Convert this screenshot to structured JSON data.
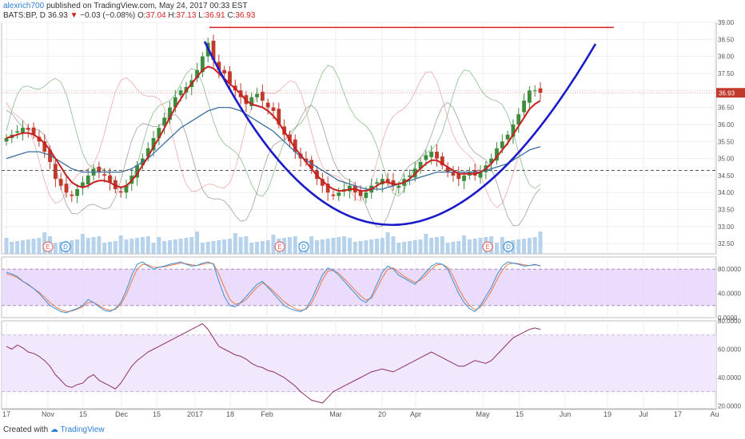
{
  "header": {
    "author": "alexrich700",
    "published": "published on TradingView.com, May 24, 2017 00:33 EST",
    "symbol": "BATS:BP, D",
    "last": "36.93",
    "change_arrow": "▼",
    "change": "−0.03 (−0.08%)",
    "o_label": "O:",
    "o": "37.04",
    "h_label": "H:",
    "h": "37.13",
    "l_label": "L:",
    "l": "36.91",
    "c_label": "C:",
    "c": "36.93"
  },
  "footer": {
    "created_with": "Created with",
    "brand": "TradingView"
  },
  "colors": {
    "up": "#3c8c3c",
    "down": "#c0392b",
    "ma_red": "#c81e1e",
    "ma_blue": "#3a6fa0",
    "cup": "#1a1ac8",
    "stoch_k": "#3a8fd6",
    "stoch_d": "#e8794a",
    "rsi": "#8e2f6e",
    "band": "#e6d3fb"
  },
  "chart_data": [
    {
      "type": "candlestick",
      "title": "",
      "ylim": [
        32.2,
        39.0
      ],
      "y_ticks": [
        "32.50",
        "33.00",
        "33.50",
        "34.00",
        "34.50",
        "35.00",
        "35.50",
        "36.00",
        "36.50",
        "37.00",
        "37.50",
        "38.00",
        "38.50",
        "39.00"
      ],
      "x_tick_labels": [
        "17",
        "Nov",
        "15",
        "Dec",
        "15",
        "2017",
        "18",
        "Feb",
        "Mar",
        "20",
        "Apr",
        "May",
        "15",
        "Jun",
        "19",
        "Jul",
        "17",
        "Au"
      ],
      "last_price_label": "36.93",
      "resistance_level": 38.85,
      "support_level": 34.65,
      "close": [
        35.6,
        35.7,
        35.8,
        35.9,
        35.85,
        35.7,
        35.5,
        35.2,
        34.9,
        34.4,
        34.2,
        34.0,
        33.9,
        34.1,
        34.3,
        34.5,
        34.7,
        34.6,
        34.5,
        34.3,
        34.1,
        34.0,
        34.2,
        34.5,
        34.8,
        35.0,
        35.3,
        35.6,
        35.9,
        36.2,
        36.5,
        36.8,
        37.0,
        37.1,
        37.3,
        37.6,
        38.0,
        38.4,
        37.9,
        37.6,
        37.5,
        37.2,
        37.0,
        36.8,
        36.6,
        36.8,
        36.9,
        36.7,
        36.5,
        36.4,
        36.0,
        35.7,
        35.5,
        35.2,
        35.0,
        34.9,
        34.7,
        34.4,
        34.2,
        34.0,
        33.9,
        34.0,
        34.1,
        34.2,
        34.0,
        33.9,
        34.0,
        34.2,
        34.3,
        34.4,
        34.3,
        34.2,
        34.2,
        34.4,
        34.5,
        34.7,
        34.9,
        35.1,
        35.2,
        35.0,
        34.8,
        34.6,
        34.5,
        34.4,
        34.5,
        34.6,
        34.5,
        34.6,
        34.8,
        35.0,
        35.3,
        35.5,
        35.7,
        36.0,
        36.3,
        36.7,
        37.0,
        37.0,
        36.93
      ],
      "ma_red_values": [
        35.6,
        35.65,
        35.7,
        35.75,
        35.75,
        35.7,
        35.6,
        35.45,
        35.25,
        35.0,
        34.75,
        34.5,
        34.3,
        34.2,
        34.15,
        34.2,
        34.3,
        34.35,
        34.35,
        34.3,
        34.2,
        34.15,
        34.2,
        34.35,
        34.55,
        34.8,
        35.05,
        35.35,
        35.6,
        35.9,
        36.2,
        36.5,
        36.75,
        37.0,
        37.2,
        37.4,
        37.6,
        37.7,
        37.65,
        37.5,
        37.35,
        37.2,
        37.05,
        36.9,
        36.7,
        36.6,
        36.55,
        36.5,
        36.4,
        36.25,
        36.05,
        35.8,
        35.55,
        35.3,
        35.1,
        34.9,
        34.7,
        34.5,
        34.35,
        34.2,
        34.1,
        34.05,
        34.05,
        34.1,
        34.1,
        34.05,
        34.05,
        34.1,
        34.2,
        34.3,
        34.3,
        34.25,
        34.25,
        34.3,
        34.4,
        34.55,
        34.7,
        34.85,
        34.95,
        34.95,
        34.85,
        34.75,
        34.65,
        34.55,
        34.55,
        34.55,
        34.55,
        34.6,
        34.7,
        34.85,
        35.05,
        35.25,
        35.45,
        35.7,
        35.95,
        36.2,
        36.45,
        36.6,
        36.7
      ],
      "ma_blue_values": [
        35.0,
        35.05,
        35.1,
        35.15,
        35.2,
        35.2,
        35.2,
        35.15,
        35.1,
        35.0,
        34.9,
        34.8,
        34.7,
        34.65,
        34.6,
        34.6,
        34.6,
        34.6,
        34.6,
        34.6,
        34.6,
        34.6,
        34.65,
        34.7,
        34.8,
        34.9,
        35.0,
        35.15,
        35.3,
        35.45,
        35.6,
        35.75,
        35.9,
        36.0,
        36.1,
        36.2,
        36.3,
        36.4,
        36.45,
        36.5,
        36.5,
        36.5,
        36.45,
        36.4,
        36.3,
        36.2,
        36.1,
        36.0,
        35.9,
        35.8,
        35.65,
        35.5,
        35.35,
        35.2,
        35.05,
        34.95,
        34.85,
        34.75,
        34.65,
        34.55,
        34.45,
        34.35,
        34.3,
        34.25,
        34.2,
        34.15,
        34.1,
        34.1,
        34.1,
        34.1,
        34.15,
        34.2,
        34.25,
        34.3,
        34.35,
        34.4,
        34.45,
        34.5,
        34.55,
        34.6,
        34.6,
        34.6,
        34.6,
        34.6,
        34.6,
        34.6,
        34.6,
        34.6,
        34.65,
        34.7,
        34.75,
        34.8,
        34.85,
        34.95,
        35.05,
        35.15,
        35.25,
        35.3,
        35.35
      ],
      "cup_curve_note": "E",
      "dividend_marker": "D"
    },
    {
      "type": "line",
      "title": "",
      "ylim": [
        0,
        100
      ],
      "y_ticks": [
        "0.0000",
        "40.0000",
        "80.0000"
      ],
      "upper_band": 80,
      "lower_band": 20,
      "series_k": [
        75,
        72,
        68,
        60,
        55,
        48,
        40,
        30,
        20,
        15,
        10,
        8,
        12,
        15,
        20,
        30,
        25,
        18,
        12,
        10,
        15,
        25,
        45,
        70,
        88,
        92,
        85,
        80,
        83,
        85,
        88,
        90,
        92,
        88,
        85,
        86,
        90,
        92,
        88,
        60,
        35,
        20,
        18,
        25,
        35,
        45,
        55,
        60,
        50,
        40,
        30,
        20,
        15,
        12,
        10,
        15,
        30,
        50,
        70,
        82,
        78,
        70,
        60,
        50,
        40,
        30,
        25,
        35,
        55,
        75,
        85,
        80,
        70,
        65,
        60,
        55,
        65,
        75,
        85,
        90,
        88,
        80,
        60,
        40,
        25,
        15,
        10,
        20,
        35,
        50,
        70,
        85,
        92,
        90,
        88,
        85,
        86,
        88,
        85
      ],
      "series_d": [
        72,
        70,
        66,
        60,
        54,
        48,
        42,
        34,
        25,
        18,
        13,
        10,
        11,
        14,
        18,
        25,
        25,
        20,
        15,
        12,
        14,
        22,
        38,
        60,
        80,
        88,
        87,
        83,
        83,
        84,
        86,
        88,
        90,
        89,
        87,
        86,
        88,
        90,
        89,
        72,
        50,
        30,
        22,
        24,
        30,
        40,
        50,
        57,
        52,
        44,
        35,
        26,
        20,
        15,
        12,
        14,
        24,
        42,
        62,
        77,
        78,
        73,
        64,
        55,
        45,
        36,
        29,
        32,
        48,
        66,
        80,
        82,
        75,
        68,
        63,
        58,
        62,
        70,
        80,
        87,
        88,
        83,
        68,
        48,
        32,
        20,
        13,
        17,
        29,
        44,
        62,
        78,
        88,
        90,
        89,
        87,
        86,
        87,
        86
      ]
    },
    {
      "type": "line",
      "title": "",
      "ylim": [
        18,
        80
      ],
      "y_ticks": [
        "20.0000",
        "40.0000",
        "60.0000",
        "80.0000"
      ],
      "upper_band": 70,
      "lower_band": 30,
      "values": [
        62,
        60,
        63,
        61,
        58,
        57,
        55,
        52,
        48,
        42,
        38,
        34,
        33,
        35,
        36,
        40,
        42,
        38,
        36,
        34,
        32,
        36,
        42,
        48,
        52,
        55,
        58,
        60,
        62,
        64,
        66,
        68,
        70,
        72,
        74,
        76,
        78,
        74,
        68,
        62,
        60,
        58,
        56,
        55,
        53,
        50,
        48,
        47,
        45,
        44,
        42,
        40,
        37,
        34,
        30,
        27,
        24,
        23,
        22,
        26,
        30,
        32,
        34,
        36,
        38,
        40,
        42,
        44,
        45,
        46,
        45,
        44,
        46,
        48,
        50,
        52,
        54,
        56,
        58,
        56,
        54,
        52,
        50,
        48,
        48,
        50,
        52,
        51,
        50,
        52,
        56,
        60,
        64,
        68,
        70,
        72,
        74,
        75,
        74
      ]
    }
  ]
}
